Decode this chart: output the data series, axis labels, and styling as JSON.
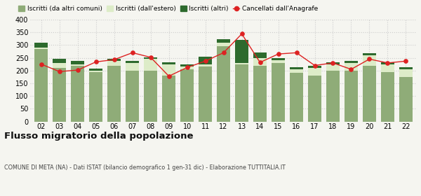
{
  "years": [
    "02",
    "03",
    "04",
    "05",
    "06",
    "07",
    "08",
    "09",
    "10",
    "11",
    "12",
    "13",
    "14",
    "15",
    "16",
    "17",
    "18",
    "19",
    "20",
    "21",
    "22"
  ],
  "iscritti_altri_comuni": [
    285,
    210,
    220,
    195,
    220,
    200,
    200,
    180,
    205,
    215,
    295,
    225,
    220,
    230,
    190,
    180,
    200,
    200,
    220,
    195,
    175
  ],
  "iscritti_estero": [
    5,
    20,
    5,
    5,
    18,
    30,
    45,
    45,
    10,
    10,
    15,
    5,
    30,
    10,
    15,
    30,
    25,
    30,
    40,
    30,
    30
  ],
  "iscritti_altri": [
    20,
    15,
    12,
    8,
    8,
    8,
    8,
    8,
    8,
    30,
    12,
    90,
    20,
    8,
    8,
    8,
    8,
    8,
    8,
    8,
    8
  ],
  "cancellati": [
    225,
    196,
    202,
    234,
    243,
    270,
    252,
    178,
    212,
    237,
    270,
    344,
    232,
    265,
    270,
    220,
    230,
    205,
    245,
    230,
    237
  ],
  "ylim": [
    0,
    400
  ],
  "yticks": [
    0,
    50,
    100,
    150,
    200,
    250,
    300,
    350,
    400
  ],
  "title": "Flusso migratorio della popolazione",
  "subtitle": "COMUNE DI META (NA) - Dati ISTAT (bilancio demografico 1 gen-31 dic) - Elaborazione TUTTITALIA.IT",
  "legend_labels": [
    "Iscritti (da altri comuni)",
    "Iscritti (dall'estero)",
    "Iscritti (altri)",
    "Cancellati dall'Anagrafe"
  ],
  "color_iscritti_altri_comuni": "#8fac78",
  "color_iscritti_estero": "#ddecc8",
  "color_iscritti_altri": "#2d6a2d",
  "color_cancellati": "#dd2222",
  "bg_color": "#f5f5f0",
  "grid_color": "#cccccc"
}
